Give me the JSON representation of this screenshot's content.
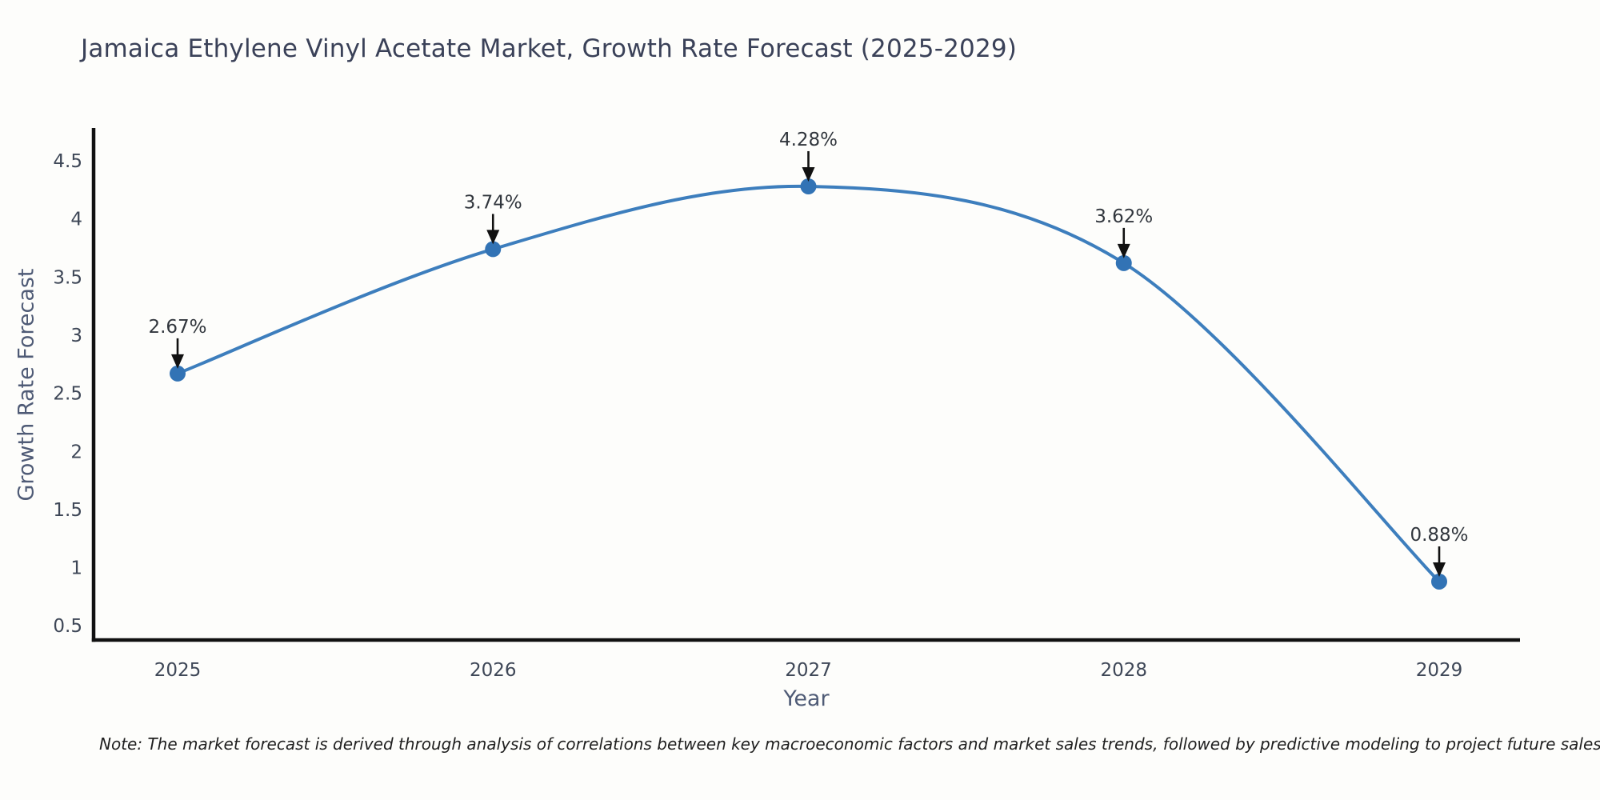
{
  "chart_data": {
    "type": "line",
    "title": "Jamaica Ethylene Vinyl Acetate Market, Growth Rate Forecast (2025-2029)",
    "xlabel": "Year",
    "ylabel": "Growth Rate Forecast",
    "categories": [
      "2025",
      "2026",
      "2027",
      "2028",
      "2029"
    ],
    "values": [
      2.67,
      3.74,
      4.28,
      3.62,
      0.88
    ],
    "point_labels": [
      "2.67%",
      "3.74%",
      "4.28%",
      "3.62%",
      "0.88%"
    ],
    "yticks": [
      "0.5",
      "1",
      "1.5",
      "2",
      "2.5",
      "3",
      "3.5",
      "4",
      "4.5"
    ],
    "ylim": [
      0.38,
      4.78
    ],
    "line_shape": "spline",
    "grid": false,
    "legend": "none",
    "note": "Note: The market forecast is derived through analysis of correlations between key macroeconomic factors and market sales trends, followed by predictive modeling to project future sales",
    "colors": {
      "line": "#3d7ebd",
      "marker": "#3273b5",
      "axis": "#111111",
      "annotation_arrow": "#111111",
      "annotation_text": "#31363d",
      "title_text": "#3a4158",
      "tick_text": "#3e4757",
      "axis_title_text": "#4f5b76",
      "note_text": "#1f1f1f",
      "background": "#fdfdfb"
    }
  }
}
